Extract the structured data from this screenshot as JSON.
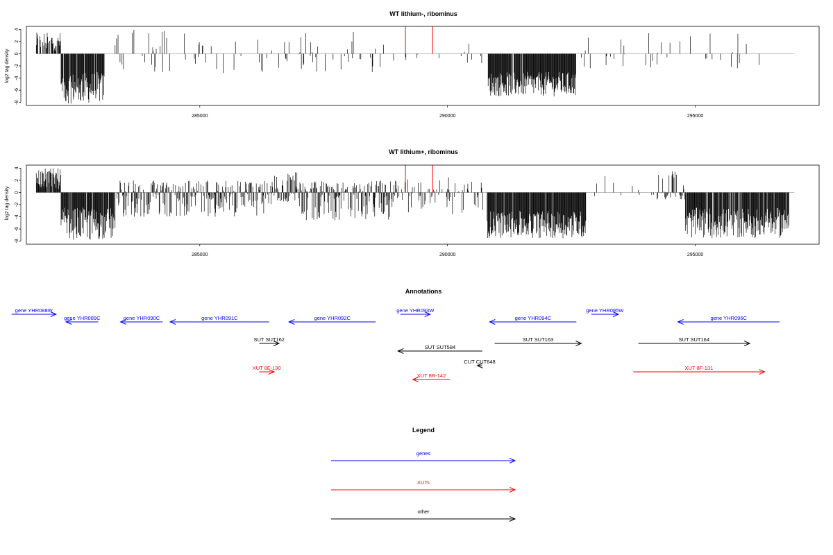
{
  "colors": {
    "gene": "#0000ff",
    "xut": "#ff0000",
    "other": "#000000",
    "marker": "#ff0000"
  },
  "chart_data": [
    {
      "type": "bar",
      "title": "WT lithium-, ribominus",
      "ylabel": "log2 tag density",
      "xlim": [
        281500,
        297500
      ],
      "ylim": [
        -8.5,
        4.5
      ],
      "xticks": [
        285000,
        290000,
        295000
      ],
      "xtick_labels": [
        "285000",
        "290000",
        "295000"
      ],
      "yticks": [
        4,
        2,
        0,
        -2,
        -4,
        -6,
        -8
      ],
      "ytick_labels": [
        "4",
        "2",
        "0",
        "-2",
        "-4",
        "-6",
        "-8"
      ],
      "markers_x": [
        289150,
        289700
      ],
      "segments": [
        {
          "from": 281700,
          "to": 282200,
          "min": 0.5,
          "max": 3.5,
          "density": 0.7
        },
        {
          "from": 282200,
          "to": 283080,
          "min": -8.2,
          "max": -3.0,
          "density": 0.95
        },
        {
          "from": 283200,
          "to": 289000,
          "min": -4.0,
          "max": 4.0,
          "density": 0.12
        },
        {
          "from": 289000,
          "to": 290800,
          "min": -2.0,
          "max": 4.0,
          "density": 0.06
        },
        {
          "from": 290820,
          "to": 292600,
          "min": -7.0,
          "max": -3.0,
          "density": 0.95
        },
        {
          "from": 292700,
          "to": 296300,
          "min": -3.0,
          "max": 3.8,
          "density": 0.1
        }
      ]
    },
    {
      "type": "bar",
      "title": "WT lithium+, ribominus",
      "ylabel": "log2 tag density",
      "xlim": [
        281500,
        297500
      ],
      "ylim": [
        -8.5,
        4.5
      ],
      "xticks": [
        285000,
        290000,
        295000
      ],
      "xtick_labels": [
        "285000",
        "290000",
        "295000"
      ],
      "yticks": [
        4,
        2,
        0,
        -2,
        -4,
        -6,
        -8
      ],
      "ytick_labels": [
        "4",
        "2",
        "0",
        "-2",
        "-4",
        "-6",
        "-8"
      ],
      "markers_x": [
        289150,
        289700
      ],
      "segments": [
        {
          "from": 281700,
          "to": 282200,
          "min": 0.5,
          "max": 4.0,
          "density": 0.85
        },
        {
          "from": 282200,
          "to": 283300,
          "min": -7.8,
          "max": -2.5,
          "density": 0.95
        },
        {
          "from": 283300,
          "to": 286500,
          "min": -5.0,
          "max": 2.0,
          "density": 0.7
        },
        {
          "from": 286500,
          "to": 287000,
          "min": -2.0,
          "max": 3.5,
          "density": 0.6
        },
        {
          "from": 287000,
          "to": 289000,
          "min": -6.0,
          "max": 2.0,
          "density": 0.8
        },
        {
          "from": 289000,
          "to": 290800,
          "min": -4.5,
          "max": 2.5,
          "density": 0.35
        },
        {
          "from": 290800,
          "to": 292800,
          "min": -7.5,
          "max": -3.0,
          "density": 0.97
        },
        {
          "from": 292800,
          "to": 294200,
          "min": -1.0,
          "max": 3.0,
          "density": 0.08
        },
        {
          "from": 294200,
          "to": 294800,
          "min": -1.5,
          "max": 4.0,
          "density": 0.5
        },
        {
          "from": 294800,
          "to": 296900,
          "min": -7.5,
          "max": -2.5,
          "density": 0.92
        }
      ]
    }
  ],
  "annotations": {
    "title": "Annotations",
    "items": [
      {
        "label": "gene YHR088W",
        "kind": "gene",
        "from": 281200,
        "to": 282100,
        "dir": "right",
        "row": 0
      },
      {
        "label": "gene YHR089C",
        "kind": "gene",
        "from": 282300,
        "to": 282950,
        "dir": "left",
        "row": 1
      },
      {
        "label": "gene YHR090C",
        "kind": "gene",
        "from": 283400,
        "to": 284250,
        "dir": "left",
        "row": 1
      },
      {
        "label": "gene YHR091C",
        "kind": "gene",
        "from": 284400,
        "to": 286400,
        "dir": "left",
        "row": 1
      },
      {
        "label": "gene YHR092C",
        "kind": "gene",
        "from": 286800,
        "to": 288550,
        "dir": "left",
        "row": 1
      },
      {
        "label": "gene YHR093W",
        "kind": "gene",
        "from": 289050,
        "to": 289650,
        "dir": "right",
        "row": 0
      },
      {
        "label": "gene YHR094C",
        "kind": "gene",
        "from": 290850,
        "to": 292600,
        "dir": "left",
        "row": 1
      },
      {
        "label": "gene YHR095W",
        "kind": "gene",
        "from": 292900,
        "to": 293450,
        "dir": "right",
        "row": 0
      },
      {
        "label": "gene YHR096C",
        "kind": "gene",
        "from": 294650,
        "to": 296700,
        "dir": "left",
        "row": 1
      },
      {
        "label": "SUT SUT162",
        "kind": "other",
        "from": 286200,
        "to": 286600,
        "dir": "right",
        "row": 2
      },
      {
        "label": "SUT SUT584",
        "kind": "other",
        "from": 289000,
        "to": 290700,
        "dir": "left",
        "row": 3
      },
      {
        "label": "SUT SUT163",
        "kind": "other",
        "from": 290950,
        "to": 292700,
        "dir": "right",
        "row": 2
      },
      {
        "label": "SUT SUT164",
        "kind": "other",
        "from": 293850,
        "to": 296100,
        "dir": "right",
        "row": 2
      },
      {
        "label": "CUT CUT648",
        "kind": "other",
        "from": 290600,
        "to": 290700,
        "dir": "left",
        "row": 4
      },
      {
        "label": "XUT 8F-130",
        "kind": "xut",
        "from": 286200,
        "to": 286500,
        "dir": "right",
        "row": 5
      },
      {
        "label": "XUT 8R-142",
        "kind": "xut",
        "from": 289300,
        "to": 290050,
        "dir": "left",
        "row": 6
      },
      {
        "label": "XUT 8F-131",
        "kind": "xut",
        "from": 293750,
        "to": 296400,
        "dir": "right",
        "row": 5
      }
    ]
  },
  "legend": {
    "title": "Legend",
    "entries": [
      {
        "label": "genes",
        "kind": "gene"
      },
      {
        "label": "XUTs",
        "kind": "xut"
      },
      {
        "label": "other",
        "kind": "other"
      }
    ]
  }
}
